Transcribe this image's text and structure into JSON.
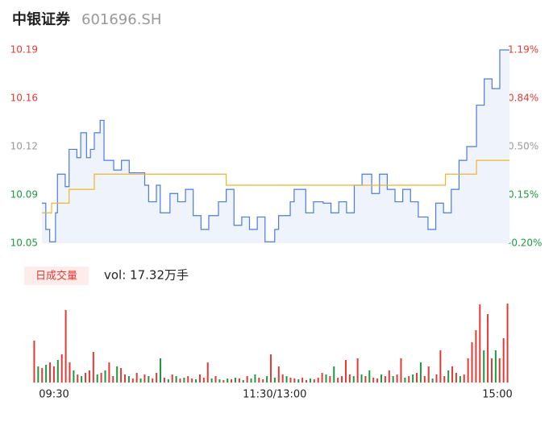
{
  "chart_data": [
    {
      "type": "line",
      "title": "中银证券",
      "subtitle": "601696.SH",
      "xlim": [
        0,
        241
      ],
      "xticks": [
        {
          "value": 0,
          "label": "09:30"
        },
        {
          "value": 120,
          "label": "11:30/13:00"
        },
        {
          "value": 241,
          "label": "15:00"
        }
      ],
      "ylim": [
        10.05,
        10.19
      ],
      "yticks": [
        {
          "value": 10.05,
          "label": "10.05"
        },
        {
          "value": 10.085,
          "label": "10.09"
        },
        {
          "value": 10.12,
          "label": "10.12"
        },
        {
          "value": 10.155,
          "label": "10.16"
        },
        {
          "value": 10.19,
          "label": "10.19"
        }
      ],
      "y2lim": [
        -0.2,
        1.19
      ],
      "y2ticks": [
        {
          "value": -0.2,
          "label": "-0.20%"
        },
        {
          "value": 0.1475,
          "label": "0.15%"
        },
        {
          "value": 0.495,
          "label": "0.50%"
        },
        {
          "value": 0.8425,
          "label": "0.84%"
        },
        {
          "value": 1.19,
          "label": "1.19%"
        }
      ],
      "ytick_colors": [
        "#1a9b3c",
        "#1a9b3c",
        "#999999",
        "#e53935",
        "#e53935"
      ],
      "area_color": "#eef3fc",
      "series": [
        {
          "color": "#4a7be0",
          "x": [
            0,
            2,
            4,
            7,
            8,
            12,
            14,
            18,
            20,
            23,
            25,
            27,
            30,
            32,
            37,
            41,
            45,
            49,
            53,
            55,
            59,
            61,
            66,
            70,
            74,
            78,
            82,
            86,
            91,
            95,
            99,
            103,
            107,
            111,
            115,
            120,
            122,
            128,
            130,
            136,
            140,
            145,
            149,
            153,
            157,
            161,
            165,
            170,
            174,
            178,
            182,
            186,
            190,
            194,
            199,
            203,
            207,
            211,
            215,
            219,
            224,
            228,
            232,
            236,
            241
          ],
          "values": [
            10.079,
            10.06,
            10.051,
            10.072,
            10.1,
            10.091,
            10.118,
            10.112,
            10.13,
            10.112,
            10.118,
            10.13,
            10.139,
            10.11,
            10.103,
            10.11,
            10.101,
            10.101,
            10.092,
            10.08,
            10.092,
            10.072,
            10.086,
            10.08,
            10.089,
            10.07,
            10.06,
            10.07,
            10.08,
            10.089,
            10.063,
            10.069,
            10.06,
            10.069,
            10.051,
            10.06,
            10.07,
            10.08,
            10.089,
            10.072,
            10.08,
            10.079,
            10.072,
            10.08,
            10.072,
            10.092,
            10.1,
            10.086,
            10.1,
            10.089,
            10.08,
            10.089,
            10.08,
            10.069,
            10.06,
            10.079,
            10.072,
            10.089,
            10.11,
            10.12,
            10.15,
            10.169,
            10.162,
            10.19,
            10.19
          ]
        },
        {
          "color": "#f0b429",
          "x": [
            0,
            5,
            14,
            27,
            95,
            208,
            224,
            241
          ],
          "values": [
            10.072,
            10.079,
            10.089,
            10.1,
            10.092,
            10.1,
            10.11,
            10.11
          ]
        }
      ]
    },
    {
      "type": "bar",
      "label": "日成交量",
      "annotation": "vol: 17.32万手",
      "ylim": [
        0,
        100
      ],
      "series": [
        {
          "color": "#e53935",
          "values": [
            52,
            null,
            18,
            null,
            25,
            20,
            null,
            35,
            90,
            25,
            null,
            10,
            null,
            12,
            15,
            38,
            null,
            12,
            null,
            25,
            8,
            null,
            18,
            10,
            null,
            5,
            12,
            null,
            10,
            null,
            5,
            12,
            null,
            6,
            null,
            10,
            null,
            5,
            null,
            8,
            5,
            null,
            10,
            6,
            25,
            null,
            8,
            null,
            3,
            null,
            4,
            null,
            5,
            null,
            8,
            null,
            null,
            6,
            4,
            null,
            35,
            null,
            20,
            10,
            null,
            6,
            5,
            null,
            6,
            3,
            null,
            4,
            6,
            12,
            null,
            8,
            null,
            6,
            8,
            28,
            10,
            null,
            30,
            null,
            8,
            null,
            6,
            5,
            null,
            8,
            15,
            null,
            10,
            30,
            null,
            8,
            null,
            12,
            null,
            8,
            20,
            null,
            10,
            40,
            8,
            null,
            20,
            12,
            null,
            10,
            30,
            50,
            65,
            97,
            null,
            85,
            30,
            null,
            30,
            55,
            98
          ]
        },
        {
          "color": "#1a9b3c",
          "values": [
            null,
            20,
            null,
            22,
            null,
            null,
            28,
            null,
            null,
            null,
            15,
            null,
            8,
            null,
            null,
            null,
            10,
            null,
            15,
            null,
            null,
            20,
            null,
            null,
            8,
            null,
            null,
            5,
            null,
            8,
            null,
            null,
            30,
            null,
            4,
            null,
            8,
            null,
            6,
            null,
            null,
            4,
            null,
            null,
            null,
            5,
            null,
            4,
            null,
            5,
            null,
            6,
            null,
            3,
            null,
            5,
            10,
            null,
            null,
            8,
            null,
            6,
            null,
            null,
            8,
            null,
            null,
            4,
            null,
            null,
            5,
            null,
            null,
            null,
            10,
            null,
            20,
            null,
            null,
            null,
            null,
            8,
            null,
            10,
            null,
            15,
            null,
            null,
            10,
            null,
            null,
            8,
            null,
            null,
            6,
            null,
            10,
            null,
            25,
            null,
            null,
            5,
            null,
            null,
            null,
            15,
            null,
            null,
            8,
            null,
            null,
            null,
            null,
            null,
            40,
            null,
            null,
            40,
            null,
            null,
            null
          ]
        }
      ]
    }
  ]
}
